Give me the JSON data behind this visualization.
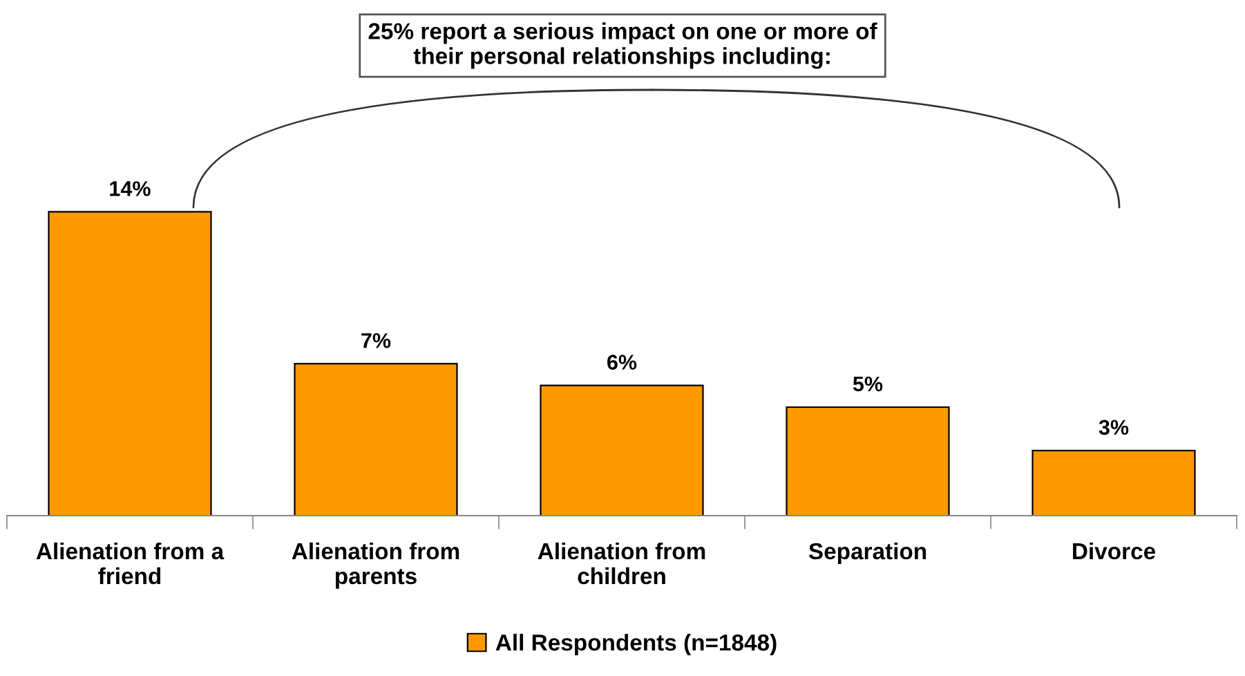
{
  "chart_data": {
    "type": "bar",
    "title": "25% report a serious impact on one or more of\ntheir personal relationships including:",
    "categories": [
      "Alienation from a\nfriend",
      "Alienation from\nparents",
      "Alienation from\nchildren",
      "Separation",
      "Divorce"
    ],
    "series": [
      {
        "name": "All Respondents (n=1848)",
        "color": "#ff9900",
        "values": [
          14,
          7,
          6,
          5,
          3
        ],
        "value_labels": [
          "14%",
          "7%",
          "6%",
          "5%",
          "3%"
        ]
      }
    ],
    "tick_labels": "x",
    "grid": false,
    "legend": "bottom"
  }
}
